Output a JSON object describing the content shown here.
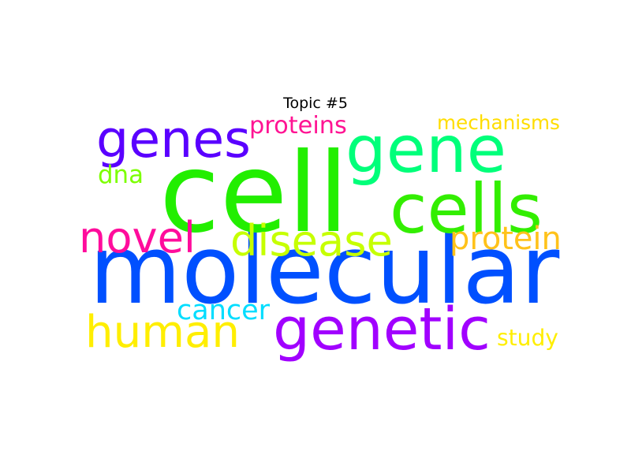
{
  "title": "Topic #5",
  "words": [
    {
      "text": "molecular",
      "color": "#0050ff"
    },
    {
      "text": "cell",
      "color": "#22ee00"
    },
    {
      "text": "gene",
      "color": "#00ff7a"
    },
    {
      "text": "genes",
      "color": "#5a00ff"
    },
    {
      "text": "cells",
      "color": "#33ee00"
    },
    {
      "text": "genetic",
      "color": "#a100ff"
    },
    {
      "text": "human",
      "color": "#ffee00"
    },
    {
      "text": "disease",
      "color": "#c6ff00"
    },
    {
      "text": "novel",
      "color": "#ff0c9c"
    },
    {
      "text": "protein",
      "color": "#ffc21a"
    },
    {
      "text": "proteins",
      "color": "#ff1493"
    },
    {
      "text": "mechanisms",
      "color": "#ffdd00"
    },
    {
      "text": "dna",
      "color": "#7cff00"
    },
    {
      "text": "cancer",
      "color": "#00ddff"
    },
    {
      "text": "study",
      "color": "#ffee00"
    }
  ]
}
